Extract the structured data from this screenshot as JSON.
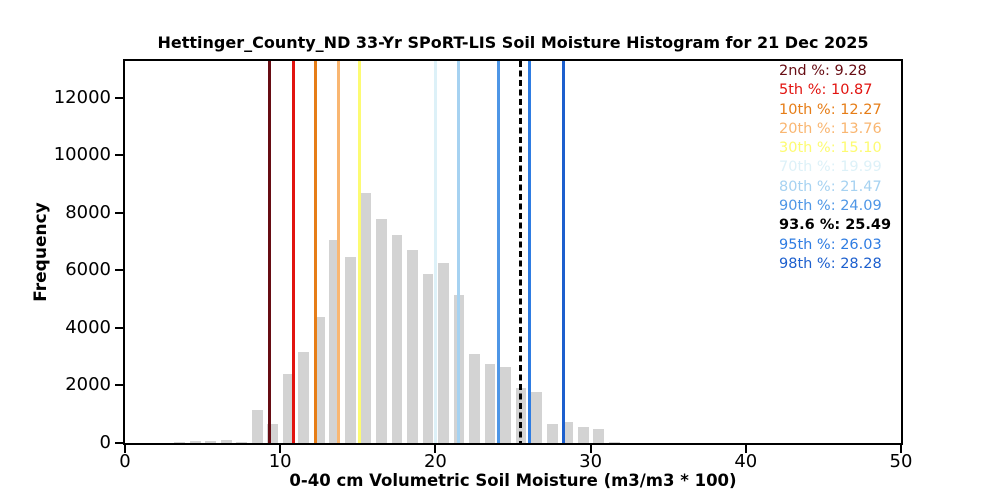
{
  "chart_data": {
    "type": "bar",
    "title": "Hettinger_County_ND 33-Yr SPoRT-LIS Soil Moisture Histogram for 21 Dec 2025",
    "xlabel": "0-40 cm Volumetric Soil Moisture (m3/m3 * 100)",
    "ylabel": "Frequency",
    "xlim": [
      0,
      50
    ],
    "ylim": [
      0,
      13270
    ],
    "xticks": [
      0,
      10,
      20,
      30,
      40,
      50
    ],
    "yticks": [
      0,
      2000,
      4000,
      6000,
      8000,
      10000,
      12000
    ],
    "grid": false,
    "legend_position": "upper right",
    "bar_color": "#d3d3d3",
    "bin_width": 1,
    "bar_rel_offset": 0.17,
    "bar_rel_width": 0.7,
    "bins": {
      "start_x": [
        3,
        4,
        5,
        6,
        7,
        8,
        9,
        10,
        11,
        12,
        13,
        14,
        15,
        16,
        17,
        18,
        19,
        20,
        21,
        22,
        23,
        24,
        25,
        26,
        27,
        28,
        29,
        30,
        31
      ],
      "frequencies": [
        50,
        70,
        60,
        90,
        40,
        1150,
        660,
        2400,
        3170,
        4370,
        7040,
        6460,
        8700,
        7790,
        7220,
        6690,
        5860,
        6250,
        5130,
        3110,
        2740,
        2650,
        1900,
        1780,
        670,
        730,
        550,
        490,
        45
      ]
    },
    "percentiles": [
      {
        "label": "2nd %",
        "display": "9.28",
        "value": 9.28,
        "color": "#670c13",
        "style": "solid",
        "bold": false
      },
      {
        "label": "5th %",
        "display": "10.87",
        "value": 10.87,
        "color": "#e21410",
        "style": "solid",
        "bold": false
      },
      {
        "label": "10th %",
        "display": "12.27",
        "value": 12.27,
        "color": "#e67d17",
        "style": "solid",
        "bold": false
      },
      {
        "label": "20th %",
        "display": "13.76",
        "value": 13.76,
        "color": "#f9b671",
        "style": "solid",
        "bold": false
      },
      {
        "label": "30th %",
        "display": "15.10",
        "value": 15.1,
        "color": "#fdfb72",
        "style": "solid",
        "bold": false
      },
      {
        "label": "70th %",
        "display": "19.99",
        "value": 19.99,
        "color": "#ddf1f8",
        "style": "solid",
        "bold": false
      },
      {
        "label": "80th %",
        "display": "21.47",
        "value": 21.47,
        "color": "#a6d2f1",
        "style": "solid",
        "bold": false
      },
      {
        "label": "90th %",
        "display": "24.09",
        "value": 24.09,
        "color": "#4e96e6",
        "style": "solid",
        "bold": false
      },
      {
        "label": "93.6 %",
        "display": "25.49",
        "value": 25.49,
        "color": "#000000",
        "style": "dashed",
        "bold": true
      },
      {
        "label": "95th %",
        "display": "26.03",
        "value": 26.03,
        "color": "#2e7ce2",
        "style": "solid",
        "bold": false
      },
      {
        "label": "98th %",
        "display": "28.28",
        "value": 28.28,
        "color": "#1c5fce",
        "style": "solid",
        "bold": false
      }
    ]
  }
}
